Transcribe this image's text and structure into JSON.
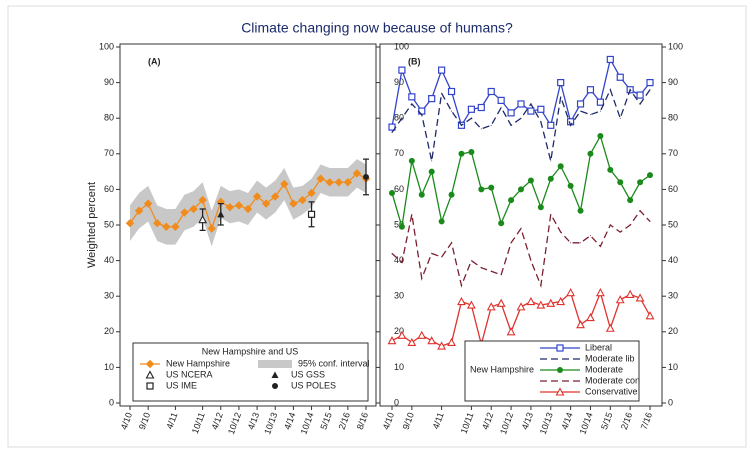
{
  "chart_data": [
    {
      "type": "line",
      "title": "Climate changing now because of humans?",
      "y_label": "Weighted percent",
      "panel_label": "(A)",
      "legend_title": "New Hampshire and US",
      "categories": [
        "4/10",
        null,
        "9/10",
        null,
        null,
        "4/11",
        null,
        null,
        "10/11",
        null,
        "4/12",
        null,
        "10/12",
        null,
        "4/13",
        null,
        "10/13",
        null,
        "4/14",
        null,
        "10/14",
        null,
        "5/15",
        null,
        "2/16",
        null,
        "8/16"
      ],
      "series": [
        {
          "name": "New Hampshire",
          "color": "#f08c1e",
          "marker": "diamond",
          "line": true,
          "values": [
            50.5,
            54,
            56,
            50.5,
            49.5,
            49.5,
            53.5,
            54.5,
            57,
            49,
            56.5,
            55,
            55.5,
            54.5,
            58,
            56,
            58,
            61.5,
            56,
            57,
            59,
            63,
            62,
            62,
            62,
            64.5,
            63
          ]
        },
        {
          "name": "US NCERA",
          "color": "#222222",
          "marker": "triangle-open",
          "line": false,
          "values": [
            null,
            null,
            null,
            null,
            null,
            null,
            null,
            null,
            51.5,
            null,
            null,
            null,
            null,
            null,
            null,
            null,
            null,
            null,
            null,
            null,
            null,
            null,
            null,
            null,
            null,
            null,
            null
          ],
          "errors": [
            null,
            null,
            null,
            null,
            null,
            null,
            null,
            null,
            3,
            null,
            null,
            null,
            null,
            null,
            null,
            null,
            null,
            null,
            null,
            null,
            null,
            null,
            null,
            null,
            null,
            null,
            null
          ]
        },
        {
          "name": "US GSS",
          "color": "#222222",
          "marker": "triangle-filled",
          "line": false,
          "values": [
            null,
            null,
            null,
            null,
            null,
            null,
            null,
            null,
            null,
            null,
            53,
            null,
            null,
            null,
            null,
            null,
            null,
            null,
            null,
            null,
            null,
            null,
            null,
            null,
            null,
            null,
            null
          ],
          "errors": [
            null,
            null,
            null,
            null,
            null,
            null,
            null,
            null,
            null,
            null,
            3,
            null,
            null,
            null,
            null,
            null,
            null,
            null,
            null,
            null,
            null,
            null,
            null,
            null,
            null,
            null,
            null
          ]
        },
        {
          "name": "US IME",
          "color": "#222222",
          "marker": "square-open",
          "line": false,
          "values": [
            null,
            null,
            null,
            null,
            null,
            null,
            null,
            null,
            null,
            null,
            null,
            null,
            null,
            null,
            null,
            null,
            null,
            null,
            null,
            null,
            53,
            null,
            null,
            null,
            null,
            null,
            null
          ],
          "errors": [
            null,
            null,
            null,
            null,
            null,
            null,
            null,
            null,
            null,
            null,
            null,
            null,
            null,
            null,
            null,
            null,
            null,
            null,
            null,
            null,
            3.5,
            null,
            null,
            null,
            null,
            null,
            null
          ]
        },
        {
          "name": "US POLES",
          "color": "#222222",
          "marker": "circle-filled",
          "line": false,
          "values": [
            null,
            null,
            null,
            null,
            null,
            null,
            null,
            null,
            null,
            null,
            null,
            null,
            null,
            null,
            null,
            null,
            null,
            null,
            null,
            null,
            null,
            null,
            null,
            null,
            null,
            null,
            63.5
          ],
          "errors": [
            null,
            null,
            null,
            null,
            null,
            null,
            null,
            null,
            null,
            null,
            null,
            null,
            null,
            null,
            null,
            null,
            null,
            null,
            null,
            null,
            null,
            null,
            null,
            null,
            null,
            null,
            5
          ]
        }
      ],
      "band": {
        "name": "95% conf. interval",
        "color": "#c8c8c8",
        "lower": [
          45.5,
          49,
          51,
          45.5,
          44.5,
          44.5,
          48.5,
          49.5,
          52,
          44,
          52,
          50.5,
          51,
          50,
          53.5,
          51.5,
          53.5,
          57,
          51.5,
          53,
          55,
          59,
          58,
          58,
          58,
          60.5,
          59
        ],
        "upper": [
          55.5,
          59,
          61,
          55.5,
          54.5,
          54.5,
          58.5,
          59.5,
          62,
          54,
          61,
          59.5,
          60,
          59,
          62.5,
          60.5,
          62.5,
          66,
          60.5,
          61,
          63,
          67,
          66,
          66,
          66,
          68.5,
          67
        ]
      },
      "ylim": [
        0,
        100
      ],
      "yticks": [
        0,
        10,
        20,
        30,
        40,
        50,
        60,
        70,
        80,
        90,
        100
      ]
    },
    {
      "type": "line",
      "panel_label": "(B)",
      "legend_title": "New Hampshire",
      "categories": [
        "4/10",
        null,
        "9/10",
        null,
        null,
        "4/11",
        null,
        null,
        "10/11",
        null,
        "4/12",
        null,
        "10/12",
        null,
        "4/13",
        null,
        "10/13",
        null,
        "4/14",
        null,
        "10/14",
        null,
        "5/15",
        null,
        "2/16",
        null,
        "7/16"
      ],
      "series": [
        {
          "name": "Liberal",
          "color": "#3344cc",
          "marker": "square-open",
          "dash": false,
          "values": [
            77.5,
            93.5,
            86,
            82,
            85.5,
            93.5,
            87.5,
            78,
            82.5,
            83,
            87.5,
            85,
            81.5,
            84,
            82,
            82.5,
            78,
            90,
            79,
            84,
            88,
            84.5,
            96.5,
            91.5,
            88,
            86.5,
            90
          ]
        },
        {
          "name": "Moderate lib",
          "color": "#1f2a6b",
          "marker": "none",
          "dash": true,
          "values": [
            76,
            80,
            84,
            81,
            68,
            87,
            82,
            78,
            80,
            77,
            78,
            83,
            78,
            80,
            84,
            79,
            68,
            86,
            78,
            82,
            81,
            82,
            88,
            80,
            88,
            84,
            88
          ]
        },
        {
          "name": "Moderate",
          "color": "#1a8a1a",
          "marker": "circle-filled",
          "dash": false,
          "values": [
            59,
            49.5,
            68,
            58.5,
            65,
            51,
            58.5,
            70,
            70.5,
            60,
            60.5,
            50.5,
            57,
            60,
            62.5,
            55,
            63,
            66.5,
            61,
            54,
            70,
            75,
            65.5,
            62,
            57,
            62,
            64
          ]
        },
        {
          "name": "Moderate con",
          "color": "#7a2030",
          "marker": "none",
          "dash": true,
          "values": [
            42,
            39.5,
            53,
            35,
            42,
            41,
            45,
            33,
            40,
            38,
            37,
            36,
            45,
            49,
            40,
            33,
            53,
            48,
            45,
            45,
            47,
            44,
            50,
            48,
            50,
            54,
            51
          ]
        },
        {
          "name": "Conservative",
          "color": "#e0322d",
          "marker": "triangle-open",
          "dash": false,
          "values": [
            17.5,
            19,
            17,
            19,
            17.5,
            16,
            17,
            28.5,
            27.5,
            16.5,
            27,
            28,
            20,
            27,
            28.5,
            27.5,
            28,
            28.5,
            31,
            22,
            24,
            31,
            21,
            29,
            30.5,
            29.5,
            24.5
          ]
        }
      ],
      "ylim": [
        0,
        100
      ],
      "yticks": [
        0,
        10,
        20,
        30,
        40,
        50,
        60,
        70,
        80,
        90,
        100
      ]
    }
  ]
}
